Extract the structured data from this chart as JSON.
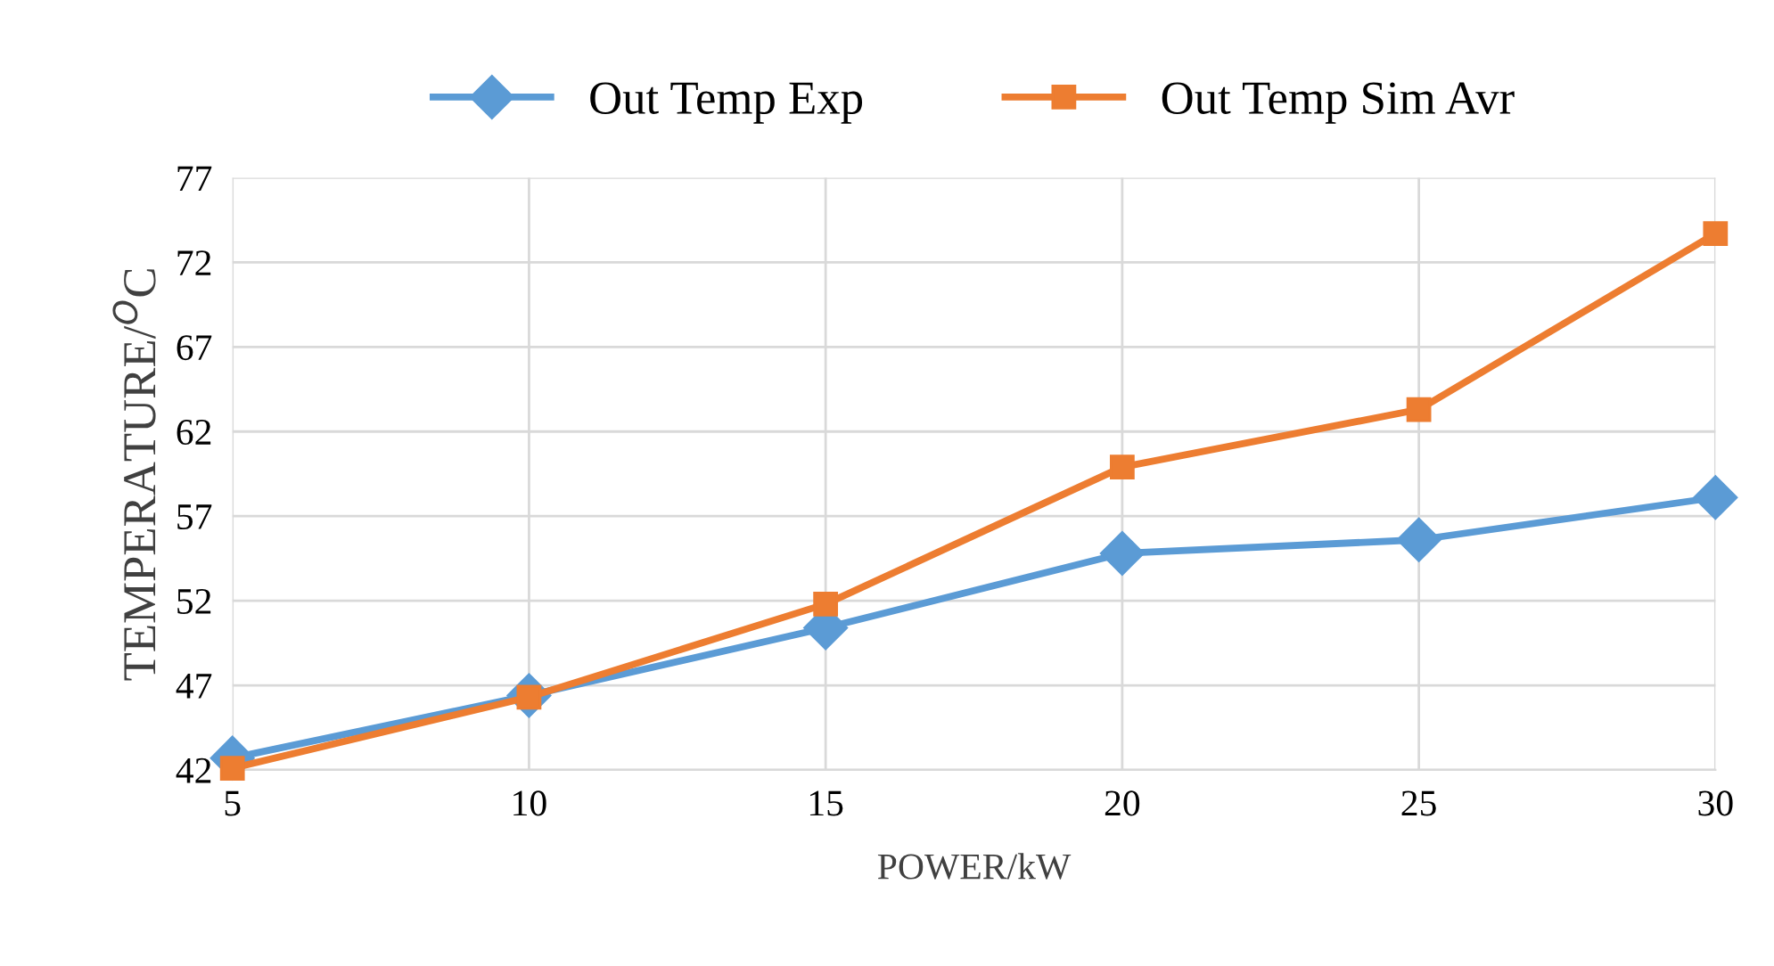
{
  "chart_data": {
    "type": "line",
    "xlabel": "POWER/kW",
    "ylabel": "TEMPERATURE/$^{O}$C",
    "x": [
      5,
      10,
      15,
      20,
      25,
      30
    ],
    "series": [
      {
        "name": "Out Temp Exp",
        "color": "#5b9bd5",
        "marker": "diamond",
        "values": [
          42.7,
          46.4,
          50.4,
          54.8,
          55.6,
          58.1
        ]
      },
      {
        "name": "Out Temp Sim Avr",
        "color": "#ed7d31",
        "marker": "square",
        "values": [
          42.1,
          46.3,
          51.8,
          59.9,
          63.3,
          73.7
        ]
      }
    ],
    "xlim": [
      5,
      30
    ],
    "xticks": [
      5,
      10,
      15,
      20,
      25,
      30
    ],
    "ylim": [
      42,
      77
    ],
    "yticks": [
      42,
      47,
      52,
      57,
      62,
      67,
      72,
      77
    ],
    "grid": true,
    "legend": "top",
    "line_style": "solid"
  }
}
